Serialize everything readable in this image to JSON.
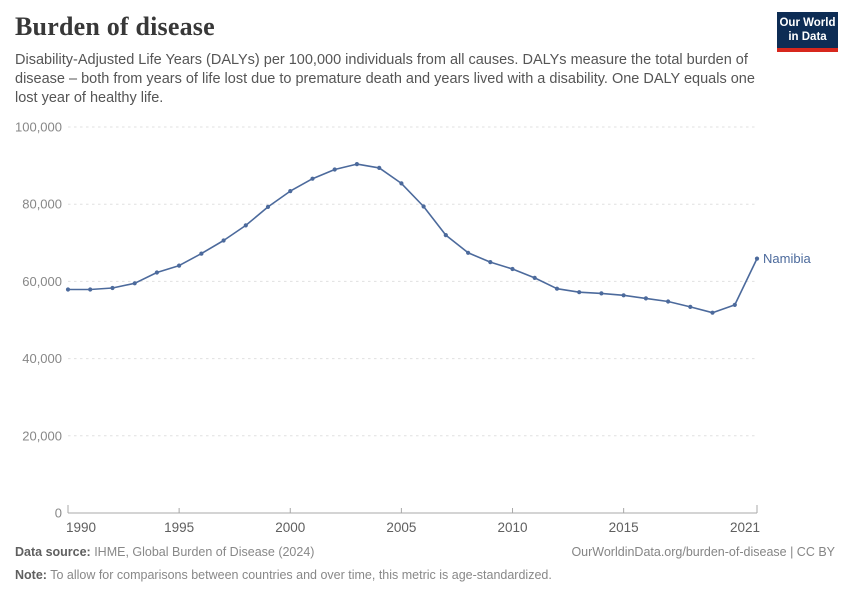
{
  "header": {
    "title": "Burden of disease",
    "subtitle": "Disability-Adjusted Life Years (DALYs) per 100,000 individuals from all causes. DALYs measure the total burden of disease – both from years of life lost due to premature death and years lived with a disability. One DALY equals one lost year of healthy life.",
    "logo": {
      "line1": "Our World",
      "line2": "in Data",
      "bg_color": "#0d2c54",
      "accent_color": "#d7271d"
    }
  },
  "chart_data": {
    "type": "line",
    "title": "Burden of disease",
    "ylabel": "",
    "xlabel": "",
    "x": [
      1990,
      1991,
      1992,
      1993,
      1994,
      1995,
      1996,
      1997,
      1998,
      1999,
      2000,
      2001,
      2002,
      2003,
      2004,
      2005,
      2006,
      2007,
      2008,
      2009,
      2010,
      2011,
      2012,
      2013,
      2014,
      2015,
      2016,
      2017,
      2018,
      2019,
      2020,
      2021
    ],
    "series": [
      {
        "name": "Namibia",
        "color": "#4C6A9C",
        "values": [
          57900,
          57900,
          58300,
          59500,
          62300,
          64100,
          67200,
          70600,
          74500,
          79300,
          83400,
          86600,
          89000,
          90400,
          89400,
          85400,
          79400,
          72000,
          67400,
          65000,
          63200,
          60900,
          58100,
          57200,
          56900,
          56400,
          55600,
          54800,
          53400,
          51900,
          53900,
          65900
        ]
      }
    ],
    "end_label": "Namibia",
    "ylim": [
      0,
      100000
    ],
    "yticks": [
      0,
      20000,
      40000,
      60000,
      80000,
      100000
    ],
    "ytick_labels": [
      "0",
      "20,000",
      "40,000",
      "60,000",
      "80,000",
      "100,000"
    ],
    "xticks": [
      1990,
      1995,
      2000,
      2005,
      2010,
      2015,
      2021
    ],
    "xtick_labels": [
      "1990",
      "1995",
      "2000",
      "2005",
      "2010",
      "2015",
      "2021"
    ],
    "grid": "horizontal-dashed",
    "legend_position": "end-of-line-label",
    "markers": true,
    "colors": {
      "line": "#4C6A9C",
      "grid": "#e0e0e0",
      "axis": "#a8a8a8",
      "ytick_label": "#878787",
      "xtick_label": "#5f5f5f",
      "end_label": "#4C6A9C"
    }
  },
  "footer": {
    "source_label": "Data source:",
    "source_text": " IHME, Global Burden of Disease (2024)",
    "credit": "OurWorldinData.org/burden-of-disease | CC BY",
    "note_label": "Note:",
    "note_text": " To allow for comparisons between countries and over time, this metric is age-standardized."
  }
}
